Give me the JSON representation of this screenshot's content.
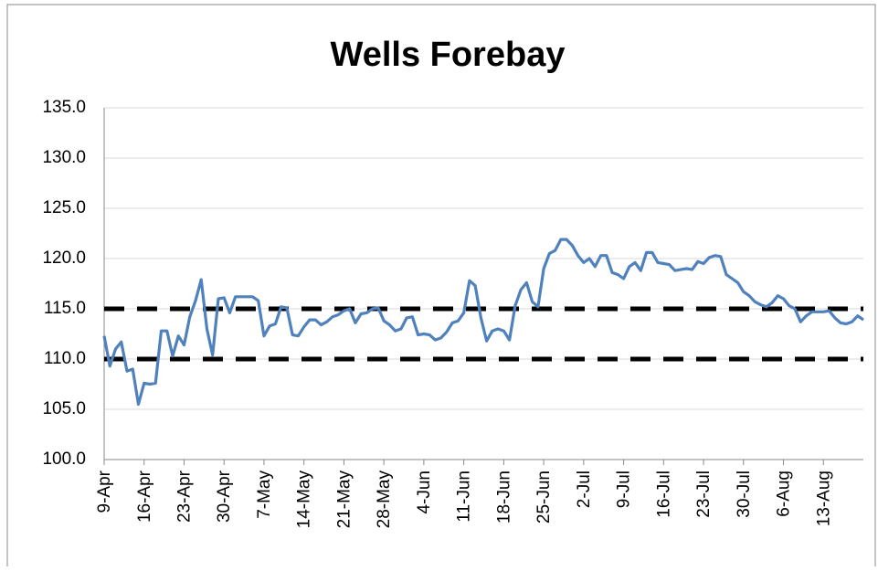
{
  "chart_data": {
    "type": "line",
    "title": "Wells Forebay",
    "categories": [
      "9-Apr",
      null,
      null,
      null,
      null,
      null,
      null,
      "16-Apr",
      null,
      null,
      null,
      null,
      null,
      null,
      "23-Apr",
      null,
      null,
      null,
      null,
      null,
      null,
      "30-Apr",
      null,
      null,
      null,
      null,
      null,
      null,
      "7-May",
      null,
      null,
      null,
      null,
      null,
      null,
      "14-May",
      null,
      null,
      null,
      null,
      null,
      null,
      "21-May",
      null,
      null,
      null,
      null,
      null,
      null,
      "28-May",
      null,
      null,
      null,
      null,
      null,
      null,
      "4-Jun",
      null,
      null,
      null,
      null,
      null,
      null,
      "11-Jun",
      null,
      null,
      null,
      null,
      null,
      null,
      "18-Jun",
      null,
      null,
      null,
      null,
      null,
      null,
      "25-Jun",
      null,
      null,
      null,
      null,
      null,
      null,
      "2-Jul",
      null,
      null,
      null,
      null,
      null,
      null,
      "9-Jul",
      null,
      null,
      null,
      null,
      null,
      null,
      "16-Jul",
      null,
      null,
      null,
      null,
      null,
      null,
      "23-Jul",
      null,
      null,
      null,
      null,
      null,
      null,
      "30-Jul",
      null,
      null,
      null,
      null,
      null,
      null,
      "6-Aug",
      null,
      null,
      null,
      null,
      null,
      null,
      "13-Aug",
      null,
      null,
      null,
      null,
      null,
      null,
      null
    ],
    "series": [
      {
        "color": "#4f81bd",
        "values": [
          112.3,
          109.3,
          111.0,
          111.7,
          108.8,
          109.0,
          105.5,
          107.6,
          107.5,
          107.6,
          112.8,
          112.8,
          110.3,
          112.3,
          111.4,
          114.2,
          115.8,
          117.9,
          113.0,
          110.4,
          116.0,
          116.1,
          114.6,
          116.2,
          116.2,
          116.2,
          116.2,
          115.8,
          112.3,
          113.3,
          113.5,
          115.2,
          115.1,
          112.4,
          112.3,
          113.2,
          113.9,
          113.9,
          113.4,
          113.7,
          114.2,
          114.4,
          114.8,
          115.0,
          113.6,
          114.5,
          114.6,
          115.0,
          115.1,
          113.8,
          113.4,
          112.8,
          113.0,
          114.1,
          114.2,
          112.4,
          112.5,
          112.4,
          111.9,
          112.1,
          112.7,
          113.6,
          113.8,
          114.6,
          117.8,
          117.3,
          114.1,
          111.8,
          112.8,
          113.0,
          112.8,
          111.9,
          115.3,
          116.9,
          117.6,
          115.7,
          115.2,
          119.0,
          120.5,
          120.8,
          121.9,
          121.9,
          121.3,
          120.3,
          119.6,
          120.0,
          119.2,
          120.3,
          120.3,
          118.6,
          118.4,
          118.0,
          119.2,
          119.6,
          118.8,
          120.6,
          120.6,
          119.6,
          119.5,
          119.4,
          118.8,
          118.9,
          119.0,
          118.9,
          119.7,
          119.5,
          120.1,
          120.3,
          120.2,
          118.4,
          118.0,
          117.6,
          116.7,
          116.3,
          115.7,
          115.4,
          115.2,
          115.6,
          116.3,
          116.0,
          115.3,
          115.0,
          113.7,
          114.3,
          114.7,
          114.7,
          114.7,
          114.8,
          114.1,
          113.6,
          113.5,
          113.7,
          114.3,
          113.9
        ]
      }
    ],
    "hlines": [
      {
        "value": 115,
        "color": "#000000"
      },
      {
        "value": 110,
        "color": "#000000"
      }
    ],
    "ylim": [
      100,
      135
    ],
    "yticks": [
      {
        "value": 100,
        "label": "100.0"
      },
      {
        "value": 105,
        "label": "105.0"
      },
      {
        "value": 110,
        "label": "110.0"
      },
      {
        "value": 115,
        "label": "115.0"
      },
      {
        "value": 120,
        "label": "120.0"
      },
      {
        "value": 125,
        "label": "125.0"
      },
      {
        "value": 130,
        "label": "130.0"
      },
      {
        "value": 135,
        "label": "135.0"
      }
    ],
    "grid": true
  }
}
